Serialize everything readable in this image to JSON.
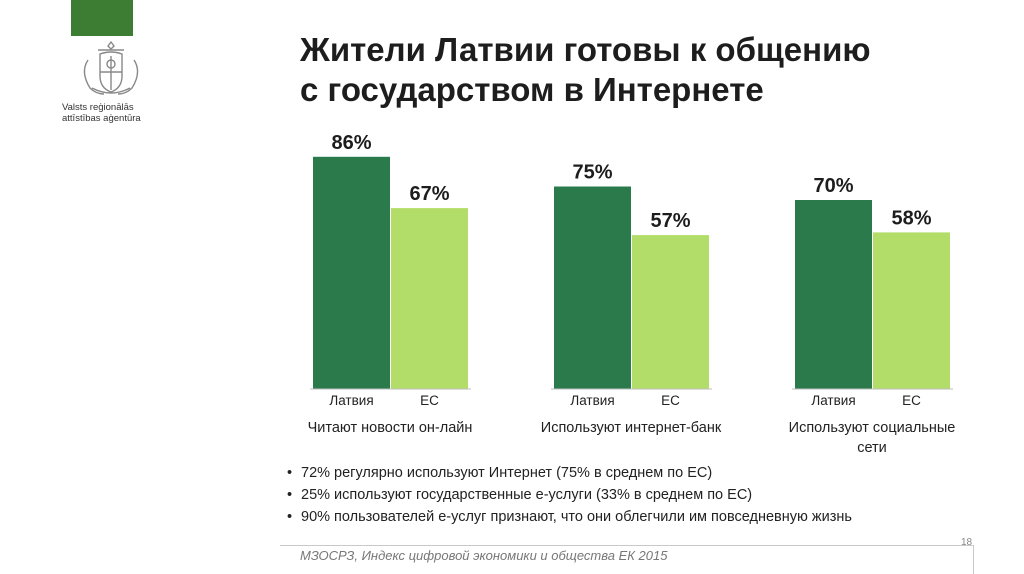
{
  "logo": {
    "line1": "Valsts reģionālās",
    "line2": "attīstības aģentūra"
  },
  "title": {
    "line1": "Жители Латвии готовы к общению",
    "line2": "с государством в Интернете"
  },
  "chart_data": {
    "type": "bar",
    "groups": [
      "Читают новости он-лайн",
      "Используют интернет-банк",
      "Используют социальные сети"
    ],
    "series": [
      {
        "name": "Латвия",
        "values": [
          86,
          75,
          70
        ],
        "color": "#2b7a4b"
      },
      {
        "name": "ЕС",
        "values": [
          67,
          57,
          58
        ],
        "color": "#b2dd68"
      }
    ],
    "value_suffix": "%",
    "ylim": [
      0,
      100
    ]
  },
  "bullets": [
    "72% регулярно используют Интернет (75% в среднем по ЕС)",
    "25% используют государственные е-услуги (33% в среднем по ЕС)",
    "90% пользователей е-услуг признают, что они облегчили им повседневную жизнь"
  ],
  "bullet_symbol": "•",
  "source": "МЗОСРЗ, Индекс цифровой экономики и общества ЕК 2015",
  "page_number": "18"
}
